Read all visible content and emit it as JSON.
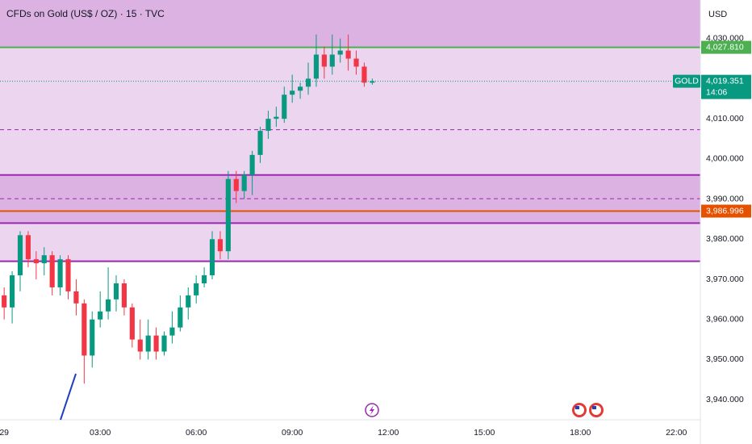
{
  "chart_data": {
    "type": "candlestick",
    "title": "CFDs on Gold (US$ / OZ) · 15 · TVC",
    "currency": "USD",
    "x": [
      0,
      0.25,
      0.5,
      0.75,
      1,
      1.25,
      1.5,
      1.75,
      2,
      2.25,
      2.5,
      2.75,
      3,
      3.25,
      3.5,
      3.75,
      4,
      4.25,
      4.5,
      4.75,
      5,
      5.25,
      5.5,
      5.75,
      6,
      6.25,
      6.5,
      6.75,
      7,
      7.25,
      7.5,
      7.75,
      8,
      8.25,
      8.5,
      8.75,
      9,
      9.25,
      9.5,
      9.75,
      10,
      10.25,
      10.5,
      10.75,
      11,
      11.25,
      11.5
    ],
    "open": [
      3966,
      3963,
      3971,
      3981,
      3975,
      3974,
      3976,
      3968,
      3975,
      3967,
      3964,
      3951,
      3960,
      3962,
      3965,
      3969,
      3963,
      3955,
      3952,
      3956,
      3952,
      3956,
      3958,
      3963,
      3966,
      3969,
      3971,
      3980,
      3977,
      3995,
      3992,
      3996,
      4001,
      4007,
      4010,
      4010,
      4016,
      4017,
      4018,
      4020,
      4026,
      4023,
      4026,
      4027,
      4025,
      4023,
      4019
    ],
    "high": [
      3968,
      3972,
      3982,
      3982,
      3977,
      3978,
      3977,
      3976,
      3976,
      3970,
      3965,
      3962,
      3967,
      3973,
      3971,
      3970,
      3964,
      3960,
      3960,
      3958,
      3957,
      3962,
      3966,
      3968,
      3971,
      3973,
      3982,
      3982,
      3997,
      3997,
      3997,
      4002,
      4008,
      4012,
      4013,
      4018,
      4021,
      4019,
      4024,
      4031,
      4028,
      4031,
      4030,
      4031,
      4027,
      4024,
      4020
    ],
    "low": [
      3960,
      3959,
      3967,
      3973,
      3970,
      3971,
      3966,
      3966,
      3965,
      3961,
      3944,
      3948,
      3958,
      3960,
      3962,
      3961,
      3953,
      3950,
      3950,
      3950,
      3951,
      3954,
      3957,
      3960,
      3964,
      3968,
      3970,
      3975,
      3975,
      3989,
      3990,
      3991,
      3999,
      4005,
      4008,
      4009,
      4014,
      4015,
      4016,
      4018,
      4020,
      4021,
      4024,
      4022,
      4021,
      4018,
      4018.5
    ],
    "close": [
      3963,
      3971,
      3981,
      3975,
      3974,
      3976,
      3968,
      3975,
      3967,
      3964,
      3951,
      3960,
      3962,
      3965,
      3969,
      3963,
      3955,
      3952,
      3956,
      3952,
      3956,
      3958,
      3963,
      3966,
      3969,
      3971,
      3980,
      3977,
      3995,
      3992,
      3996,
      4001,
      4007,
      4010,
      4010.5,
      4016,
      4017,
      4018,
      4020,
      4026,
      4023,
      4026,
      4027,
      4025,
      4023,
      4019,
      4019.351
    ],
    "up_color": "#089981",
    "down_color": "#f23645",
    "xlim": [
      -0.13,
      21.75
    ],
    "xticks": [
      {
        "value": 0,
        "label": "29"
      },
      {
        "value": 3,
        "label": "03:00"
      },
      {
        "value": 6,
        "label": "06:00"
      },
      {
        "value": 9,
        "label": "09:00"
      },
      {
        "value": 12,
        "label": "12:00"
      },
      {
        "value": 15,
        "label": "15:00"
      },
      {
        "value": 18,
        "label": "18:00"
      },
      {
        "value": 21,
        "label": "22:00"
      }
    ],
    "ylim": [
      3935,
      4039.6
    ],
    "yticks": [
      {
        "value": 3940,
        "label": "3,940.000"
      },
      {
        "value": 3950,
        "label": "3,950.000"
      },
      {
        "value": 3960,
        "label": "3,960.000"
      },
      {
        "value": 3970,
        "label": "3,970.000"
      },
      {
        "value": 3980,
        "label": "3,980.000"
      },
      {
        "value": 3990,
        "label": "3,990.000"
      },
      {
        "value": 4000,
        "label": "4,000.000"
      },
      {
        "value": 4010,
        "label": "4,010.000"
      },
      {
        "value": 4030,
        "label": "4,030.000"
      }
    ],
    "zones": [
      {
        "from": 4039.6,
        "to": 3974.5,
        "color": "#ecd5ef"
      },
      {
        "from": 4039.6,
        "to": 4027.81,
        "color": "#dcb2e2"
      },
      {
        "from": 3996,
        "to": 3984,
        "color": "#dcb2e2"
      }
    ],
    "levels": [
      {
        "value": 4027.81,
        "label": "4,027.810",
        "color": "#4caf50",
        "style": "solid"
      },
      {
        "value": 4007.3,
        "color": "#9c27b0",
        "style": "dashed"
      },
      {
        "value": 3996,
        "color": "#9c27b0",
        "style": "solid"
      },
      {
        "value": 3990.1,
        "color": "#9c27b0",
        "style": "dashed"
      },
      {
        "value": 3986.996,
        "label": "3,986.996",
        "color": "#e65100",
        "style": "solid"
      },
      {
        "value": 3984,
        "color": "#9c27b0",
        "style": "solid"
      },
      {
        "value": 3974.5,
        "color": "#9c27b0",
        "style": "solid"
      }
    ],
    "last_price": {
      "symbol": "GOLD",
      "value": 4019.351,
      "label": "4,019.351",
      "countdown": "14:06",
      "color": "#089981"
    }
  }
}
